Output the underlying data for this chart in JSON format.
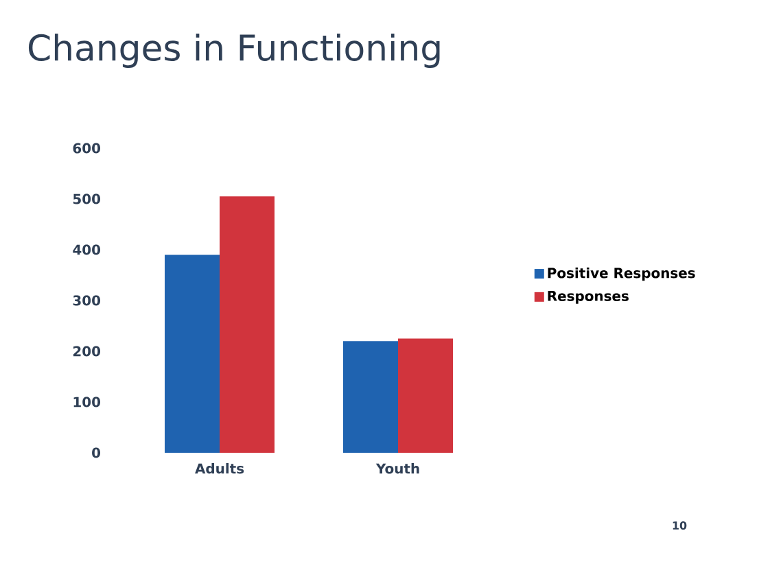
{
  "chart_data": {
    "type": "bar",
    "title": "Changes in Functioning",
    "categories": [
      "Adults",
      "Youth"
    ],
    "series": [
      {
        "name": "Positive Responses",
        "color": "#1f63b0",
        "values": [
          390,
          220
        ]
      },
      {
        "name": "Responses",
        "color": "#d1343d",
        "values": [
          505,
          225
        ]
      }
    ],
    "ylim": [
      0,
      600
    ],
    "yticks": [
      0,
      100,
      200,
      300,
      400,
      500,
      600
    ],
    "grid": false,
    "legend": "right",
    "annotations": [
      "10"
    ]
  }
}
